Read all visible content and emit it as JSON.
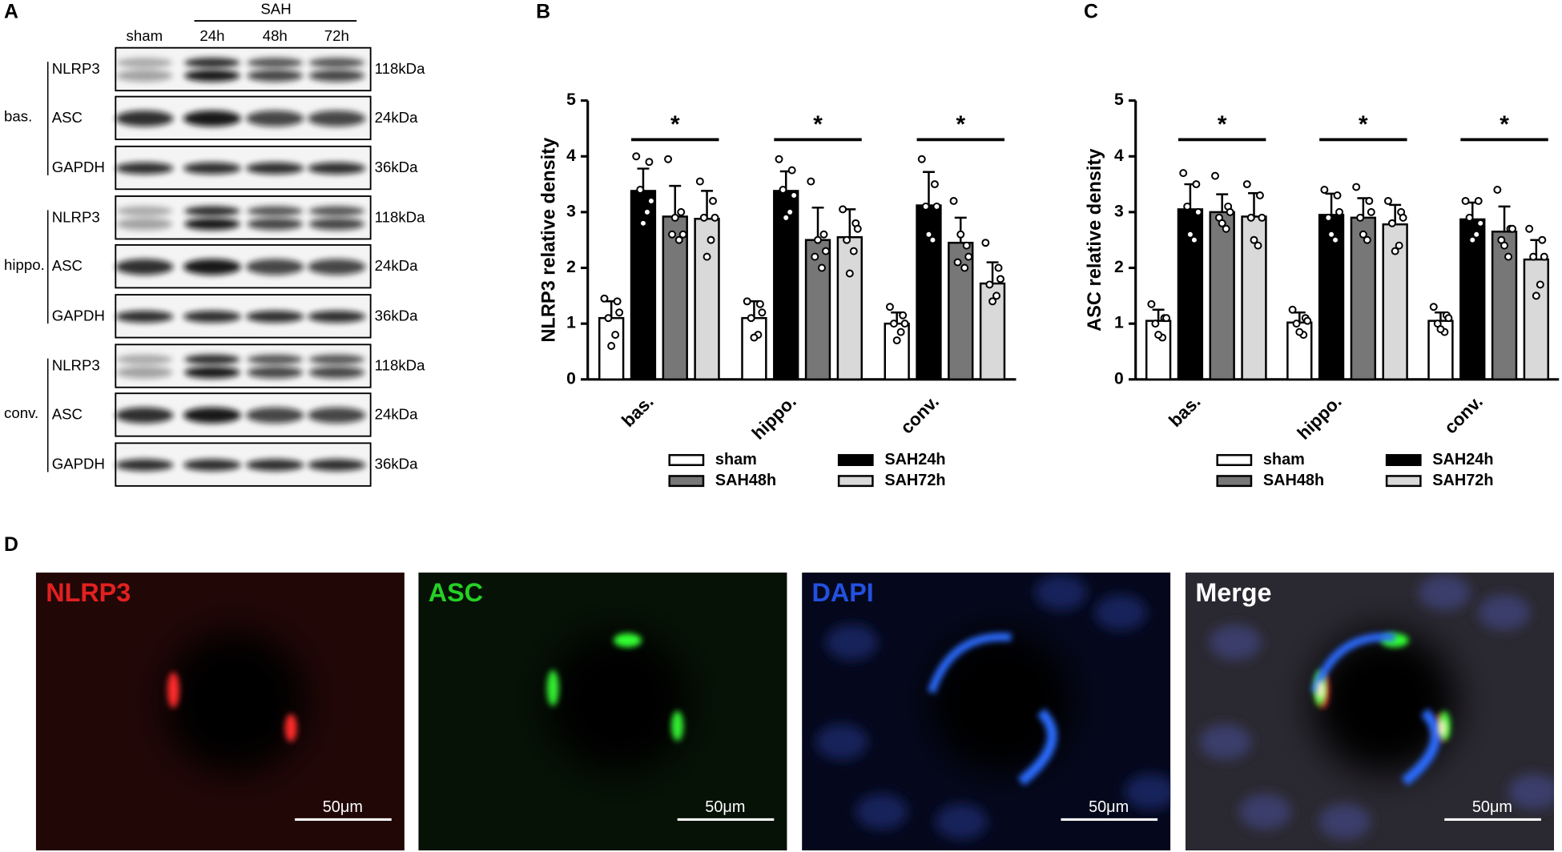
{
  "panel_letters": [
    "A",
    "B",
    "C",
    "D"
  ],
  "blot": {
    "group_label": "SAH",
    "lanes": [
      "sham",
      "24h",
      "48h",
      "72h"
    ],
    "regions": [
      {
        "label": "bas.",
        "rows": [
          {
            "protein": "NLRP3",
            "size": "118kDa"
          },
          {
            "protein": "ASC",
            "size": "24kDa"
          },
          {
            "protein": "GAPDH",
            "size": "36kDa"
          }
        ]
      },
      {
        "label": "hippo.",
        "rows": [
          {
            "protein": "NLRP3",
            "size": "118kDa"
          },
          {
            "protein": "ASC",
            "size": "24kDa"
          },
          {
            "protein": "GAPDH",
            "size": "36kDa"
          }
        ]
      },
      {
        "label": "conv.",
        "rows": [
          {
            "protein": "NLRP3",
            "size": "118kDa"
          },
          {
            "protein": "ASC",
            "size": "24kDa"
          },
          {
            "protein": "GAPDH",
            "size": "36kDa"
          }
        ]
      }
    ]
  },
  "chart_data": [
    {
      "type": "bar",
      "y_label": "NLRP3 relative density",
      "categories": [
        "bas.",
        "hippo.",
        "conv."
      ],
      "ylim": [
        0,
        5
      ],
      "yticks": [
        0,
        1,
        2,
        3,
        4,
        5
      ],
      "annotations": [
        "*",
        "*",
        "*"
      ],
      "legend": "bottom",
      "series": [
        {
          "name": "sham",
          "color": "#ffffff",
          "values": [
            1.1,
            1.1,
            1.0
          ],
          "errors": [
            0.3,
            0.3,
            0.2
          ],
          "points": [
            [
              1.45,
              1.4,
              1.1,
              0.8,
              0.6,
              1.2
            ],
            [
              1.4,
              1.35,
              1.1,
              0.8,
              0.75,
              1.2
            ],
            [
              1.3,
              1.15,
              1.0,
              0.85,
              0.7,
              1.0
            ]
          ]
        },
        {
          "name": "SAH24h",
          "color": "#000000",
          "values": [
            3.38,
            3.38,
            3.12
          ],
          "errors": [
            0.4,
            0.35,
            0.6
          ],
          "points": [
            [
              4.0,
              3.9,
              3.4,
              3.0,
              2.8,
              3.2
            ],
            [
              3.95,
              3.75,
              3.4,
              3.0,
              2.9,
              3.3
            ],
            [
              3.95,
              3.5,
              3.1,
              2.5,
              2.6,
              3.1
            ]
          ]
        },
        {
          "name": "SAH48h",
          "color": "#777777",
          "values": [
            2.92,
            2.5,
            2.45
          ],
          "errors": [
            0.55,
            0.58,
            0.45
          ],
          "points": [
            [
              3.95,
              3.0,
              2.6,
              2.5,
              2.9,
              2.6
            ],
            [
              3.55,
              2.6,
              2.2,
              2.0,
              2.5,
              2.3
            ],
            [
              3.2,
              2.4,
              2.1,
              2.0,
              2.6,
              2.2
            ]
          ]
        },
        {
          "name": "SAH72h",
          "color": "#d9d9d9",
          "values": [
            2.88,
            2.55,
            1.72
          ],
          "errors": [
            0.5,
            0.5,
            0.38
          ],
          "points": [
            [
              3.55,
              3.2,
              2.9,
              2.5,
              2.2,
              2.9
            ],
            [
              3.05,
              2.8,
              2.5,
              2.3,
              1.9,
              2.7
            ],
            [
              2.45,
              2.0,
              1.7,
              1.5,
              1.4,
              1.8
            ]
          ]
        }
      ]
    },
    {
      "type": "bar",
      "y_label": "ASC relative density",
      "categories": [
        "bas.",
        "hippo.",
        "conv."
      ],
      "ylim": [
        0,
        5
      ],
      "yticks": [
        0,
        1,
        2,
        3,
        4,
        5
      ],
      "annotations": [
        "*",
        "*",
        "*"
      ],
      "legend": "bottom",
      "series": [
        {
          "name": "sham",
          "color": "#ffffff",
          "values": [
            1.05,
            1.02,
            1.05
          ],
          "errors": [
            0.2,
            0.18,
            0.15
          ],
          "points": [
            [
              1.35,
              1.1,
              1.0,
              0.75,
              0.8,
              1.1
            ],
            [
              1.25,
              1.1,
              1.0,
              0.8,
              0.85,
              1.05
            ],
            [
              1.3,
              1.15,
              1.0,
              0.85,
              0.9,
              1.1
            ]
          ]
        },
        {
          "name": "SAH24h",
          "color": "#000000",
          "values": [
            3.05,
            2.95,
            2.87
          ],
          "errors": [
            0.45,
            0.38,
            0.3
          ],
          "points": [
            [
              3.7,
              3.5,
              3.1,
              2.5,
              2.6,
              3.0
            ],
            [
              3.4,
              3.3,
              2.9,
              2.5,
              2.6,
              3.0
            ],
            [
              3.2,
              3.2,
              2.9,
              2.6,
              2.5,
              2.8
            ]
          ]
        },
        {
          "name": "SAH48h",
          "color": "#777777",
          "values": [
            3.0,
            2.9,
            2.65
          ],
          "errors": [
            0.32,
            0.35,
            0.45
          ],
          "points": [
            [
              3.65,
              3.1,
              2.9,
              2.7,
              2.8,
              3.0
            ],
            [
              3.45,
              3.2,
              2.9,
              2.5,
              2.6,
              3.0
            ],
            [
              3.4,
              2.7,
              2.5,
              2.2,
              2.4,
              2.7
            ]
          ]
        },
        {
          "name": "SAH72h",
          "color": "#d9d9d9",
          "values": [
            2.92,
            2.78,
            2.15
          ],
          "errors": [
            0.42,
            0.35,
            0.35
          ],
          "points": [
            [
              3.5,
              3.3,
              2.9,
              2.4,
              2.5,
              2.9
            ],
            [
              3.2,
              3.0,
              2.8,
              2.4,
              2.3,
              2.9
            ],
            [
              2.7,
              2.5,
              2.2,
              1.7,
              1.5,
              2.2
            ]
          ]
        }
      ]
    }
  ],
  "micrographs": {
    "panels": [
      "NLRP3",
      "ASC",
      "DAPI",
      "Merge"
    ],
    "scale_bar": "50μm"
  }
}
